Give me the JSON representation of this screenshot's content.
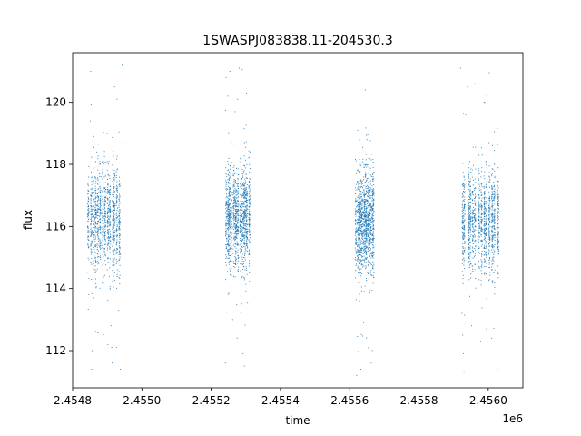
{
  "chart_data": {
    "type": "scatter",
    "title": "1SWASPJ083838.11-204530.3",
    "xlabel": "time",
    "ylabel": "flux",
    "x_offset_label": "1e6",
    "xlim": [
      2454.8,
      2456.1
    ],
    "ylim": [
      110.8,
      121.6
    ],
    "x_ticks": [
      2454.8,
      2455.0,
      2455.2,
      2455.4,
      2455.6,
      2455.8,
      2456.0
    ],
    "x_tick_labels": [
      "2.4548",
      "2.4550",
      "2.4552",
      "2.4554",
      "2.4556",
      "2.4558",
      "2.4560"
    ],
    "y_ticks": [
      112,
      114,
      116,
      118,
      120
    ],
    "y_tick_labels": [
      "112",
      "114",
      "116",
      "118",
      "120"
    ],
    "point_color": "#1f77b4",
    "series": [
      {
        "groups": [
          {
            "x_start": 2454.845,
            "x_end": 2454.94,
            "y_center": 116.2,
            "y_spread": 0.8
          },
          {
            "x_start": 2455.242,
            "x_end": 2455.312,
            "y_center": 116.3,
            "y_spread": 0.8
          },
          {
            "x_start": 2455.617,
            "x_end": 2455.672,
            "y_center": 116.1,
            "y_spread": 0.8
          },
          {
            "x_start": 2455.922,
            "x_end": 2456.032,
            "y_center": 116.2,
            "y_spread": 0.8
          }
        ],
        "points": [
          [
            2454.852,
            121.0
          ],
          [
            2454.851,
            119.4
          ],
          [
            2454.856,
            112.0
          ],
          [
            2454.855,
            111.4
          ],
          [
            2454.862,
            117.9
          ],
          [
            2454.87,
            118.4
          ],
          [
            2454.882,
            117.6
          ],
          [
            2454.89,
            114.2
          ],
          [
            2454.9,
            119.0
          ],
          [
            2454.905,
            118.1
          ],
          [
            2454.911,
            112.8
          ],
          [
            2454.913,
            112.1
          ],
          [
            2454.914,
            111.6
          ],
          [
            2454.921,
            120.5
          ],
          [
            2454.928,
            120.1
          ],
          [
            2454.933,
            113.3
          ],
          [
            2454.938,
            111.4
          ],
          [
            2454.94,
            119.3
          ],
          [
            2454.943,
            121.2
          ],
          [
            2454.945,
            118.7
          ],
          [
            2455.241,
            111.6
          ],
          [
            2455.243,
            120.8
          ],
          [
            2455.248,
            120.2
          ],
          [
            2455.254,
            121.0
          ],
          [
            2455.257,
            119.3
          ],
          [
            2455.262,
            113.0
          ],
          [
            2455.266,
            117.8
          ],
          [
            2455.269,
            119.7
          ],
          [
            2455.275,
            112.4
          ],
          [
            2455.281,
            121.1
          ],
          [
            2455.288,
            113.5
          ],
          [
            2455.292,
            111.9
          ],
          [
            2455.296,
            111.5
          ],
          [
            2455.302,
            120.3
          ],
          [
            2455.308,
            112.6
          ],
          [
            2455.312,
            118.4
          ],
          [
            2455.62,
            111.2
          ],
          [
            2455.627,
            119.2
          ],
          [
            2455.632,
            111.4
          ],
          [
            2455.637,
            112.6
          ],
          [
            2455.64,
            112.9
          ],
          [
            2455.645,
            120.4
          ],
          [
            2455.65,
            118.8
          ],
          [
            2455.655,
            118.2
          ],
          [
            2455.662,
            111.6
          ],
          [
            2455.668,
            117.9
          ],
          [
            2455.92,
            121.1
          ],
          [
            2455.924,
            113.2
          ],
          [
            2455.926,
            112.5
          ],
          [
            2455.928,
            111.9
          ],
          [
            2455.93,
            111.3
          ],
          [
            2455.935,
            119.6
          ],
          [
            2455.94,
            120.5
          ],
          [
            2455.948,
            117.2
          ],
          [
            2455.952,
            112.8
          ],
          [
            2455.961,
            120.6
          ],
          [
            2455.97,
            119.9
          ],
          [
            2455.978,
            112.3
          ],
          [
            2455.983,
            118.3
          ],
          [
            2455.99,
            120.0
          ],
          [
            2455.995,
            112.7
          ],
          [
            2456.002,
            118.7
          ],
          [
            2456.01,
            112.4
          ],
          [
            2456.018,
            118.0
          ],
          [
            2456.026,
            111.4
          ]
        ]
      }
    ]
  }
}
